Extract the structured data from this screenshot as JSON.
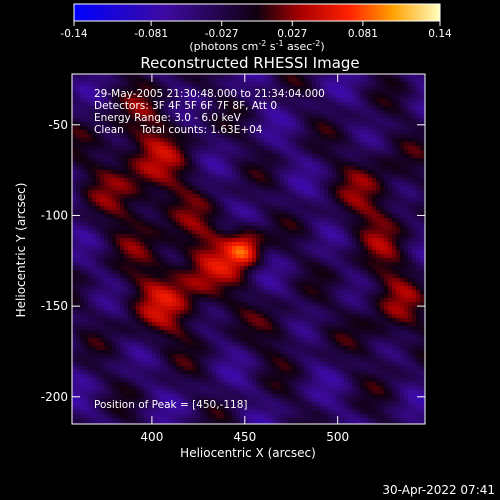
{
  "chart_data": {
    "type": "heatmap",
    "title": "Reconstructed RHESSI Image",
    "xlabel": "Heliocentric X (arcsec)",
    "ylabel": "Heliocentric Y (arcsec)",
    "xlim": [
      357,
      547
    ],
    "ylim": [
      -215,
      -22
    ],
    "x_ticks": [
      400,
      450,
      500
    ],
    "y_ticks": [
      -50,
      -100,
      -150,
      -200
    ],
    "colorbar": {
      "ticks": [
        "-0.14",
        "-0.081",
        "-0.027",
        "0.027",
        "0.081",
        "0.14"
      ],
      "range": [
        -0.14,
        0.14
      ],
      "label_html": "(photons cm<tspan dy='-4' font-size='8'>-2</tspan><tspan dy='4'> s</tspan><tspan dy='-4' font-size='8'>-1</tspan><tspan dy='4'> asec</tspan><tspan dy='-4' font-size='8'>-2</tspan><tspan dy='4'>)</tspan>"
    },
    "annotations": [
      "29-May-2005 21:30:48.000 to 21:34:04.000",
      "Detectors: 3F 4F 5F 6F 7F 8F, Att 0",
      "Energy Range: 3.0 - 6.0 keV",
      "Clean     Total counts: 1.63E+04"
    ],
    "peak_label": "Position of Peak = [450,-118]",
    "peak": {
      "x": 450,
      "y": -118,
      "value": 0.14
    },
    "sources": [
      {
        "x": 450,
        "y": -118,
        "sx": 7,
        "sy": 8,
        "amp": 0.1
      },
      {
        "x": 428,
        "y": -128,
        "sx": 14,
        "sy": 18,
        "amp": 0.055
      },
      {
        "x": 395,
        "y": -75,
        "sx": 18,
        "sy": 28,
        "amp": 0.06
      },
      {
        "x": 405,
        "y": -150,
        "sx": 16,
        "sy": 16,
        "amp": 0.05
      },
      {
        "x": 520,
        "y": -90,
        "sx": 14,
        "sy": 22,
        "amp": 0.045
      },
      {
        "x": 528,
        "y": -150,
        "sx": 12,
        "sy": 22,
        "amp": 0.045
      },
      {
        "x": 470,
        "y": -165,
        "sx": 10,
        "sy": 12,
        "amp": 0.03
      }
    ]
  },
  "timestamp": "30-Apr-2022 07:41"
}
